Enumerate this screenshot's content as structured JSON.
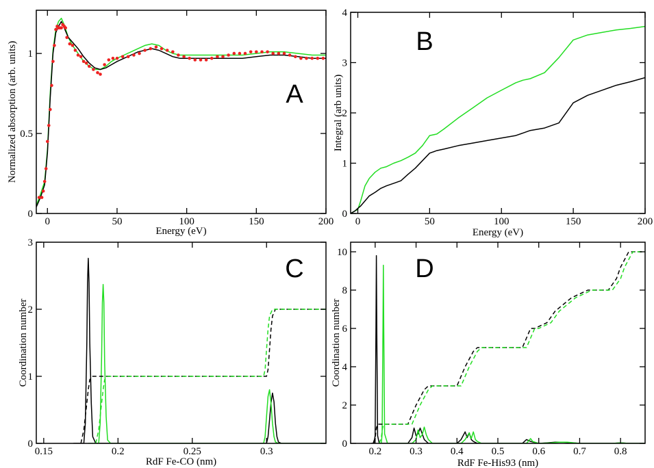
{
  "colors": {
    "black": "#000000",
    "green": "#22dd22",
    "red": "#ee2222"
  },
  "chart_data": [
    {
      "type": "line",
      "panel_label": "A",
      "xlabel": "Energy (eV)",
      "ylabel": "Normalized absorption (arb. units)",
      "xlim": [
        -8,
        200
      ],
      "ylim": [
        0,
        1.27
      ],
      "xticks": [
        0,
        50,
        100,
        150,
        200
      ],
      "yticks": [
        0,
        0.5,
        1
      ],
      "xtick_labels": [
        "0",
        "50",
        "100",
        "150",
        "200"
      ],
      "ytick_labels": [
        "0",
        "0.5",
        "1"
      ],
      "series": [
        {
          "color": "green",
          "style": "solid",
          "x": [
            -8,
            -5,
            -2,
            0,
            2,
            4,
            6,
            8,
            10,
            12,
            15,
            18,
            22,
            26,
            30,
            34,
            38,
            42,
            46,
            50,
            55,
            60,
            65,
            70,
            75,
            80,
            85,
            90,
            95,
            100,
            110,
            120,
            130,
            140,
            150,
            160,
            170,
            180,
            190,
            200
          ],
          "y": [
            0.05,
            0.12,
            0.2,
            0.4,
            0.75,
            1.02,
            1.15,
            1.2,
            1.22,
            1.18,
            1.1,
            1.05,
            1.0,
            0.95,
            0.92,
            0.9,
            0.9,
            0.92,
            0.95,
            0.97,
            0.99,
            1.01,
            1.03,
            1.05,
            1.06,
            1.05,
            1.02,
            1.0,
            0.99,
            0.99,
            0.99,
            0.99,
            0.99,
            0.99,
            1.0,
            1.01,
            1.01,
            1.0,
            0.99,
            0.99
          ]
        },
        {
          "color": "black",
          "style": "solid",
          "x": [
            -8,
            -5,
            -2,
            0,
            2,
            4,
            6,
            8,
            10,
            12,
            15,
            18,
            22,
            26,
            30,
            34,
            38,
            42,
            46,
            50,
            55,
            60,
            65,
            70,
            75,
            80,
            85,
            90,
            95,
            100,
            110,
            120,
            130,
            140,
            150,
            160,
            170,
            180,
            190,
            200
          ],
          "y": [
            0.04,
            0.1,
            0.18,
            0.38,
            0.72,
            1.0,
            1.13,
            1.17,
            1.2,
            1.16,
            1.1,
            1.07,
            1.03,
            0.98,
            0.94,
            0.91,
            0.9,
            0.91,
            0.93,
            0.95,
            0.97,
            0.99,
            1.01,
            1.02,
            1.03,
            1.02,
            1.0,
            0.98,
            0.97,
            0.97,
            0.97,
            0.97,
            0.97,
            0.97,
            0.98,
            0.99,
            0.99,
            0.98,
            0.97,
            0.97
          ]
        },
        {
          "color": "red",
          "style": "dots",
          "x": [
            -6,
            -4,
            -3,
            -2,
            -1,
            0,
            1,
            2,
            3,
            4,
            5,
            6,
            7,
            8,
            9,
            10,
            11,
            12,
            13,
            14,
            16,
            18,
            20,
            22,
            24,
            26,
            28,
            30,
            33,
            36,
            38,
            41,
            44,
            47,
            50,
            54,
            58,
            62,
            66,
            70,
            74,
            78,
            82,
            86,
            90,
            94,
            98,
            102,
            106,
            110,
            114,
            118,
            122,
            126,
            130,
            134,
            138,
            142,
            146,
            150,
            154,
            158,
            162,
            166,
            170,
            174,
            178,
            182,
            186,
            190,
            194,
            198
          ],
          "y": [
            0.1,
            0.1,
            0.14,
            0.2,
            0.28,
            0.45,
            0.55,
            0.65,
            0.8,
            0.95,
            1.05,
            1.15,
            1.17,
            1.16,
            1.16,
            1.16,
            1.18,
            1.17,
            1.16,
            1.1,
            1.06,
            1.05,
            1.02,
            0.99,
            0.98,
            0.95,
            0.94,
            0.92,
            0.9,
            0.88,
            0.87,
            0.93,
            0.96,
            0.97,
            0.97,
            0.98,
            0.98,
            0.99,
            1.0,
            1.02,
            1.03,
            1.04,
            1.03,
            1.02,
            1.01,
            0.99,
            0.98,
            0.97,
            0.96,
            0.96,
            0.96,
            0.97,
            0.98,
            0.98,
            0.99,
            1.0,
            1.0,
            1.0,
            1.01,
            1.01,
            1.01,
            1.01,
            1.0,
            1.0,
            1.0,
            0.99,
            0.98,
            0.97,
            0.97,
            0.97,
            0.97,
            0.97
          ]
        }
      ]
    },
    {
      "type": "line",
      "panel_label": "B",
      "xlabel": "Energy (eV)",
      "ylabel": "Integral (arb units)",
      "xlim": [
        -5,
        200
      ],
      "ylim": [
        0,
        4
      ],
      "xticks": [
        0,
        50,
        100,
        150,
        200
      ],
      "yticks": [
        0,
        1,
        2,
        3,
        4
      ],
      "xtick_labels": [
        "0",
        "50",
        "100",
        "150",
        "200"
      ],
      "ytick_labels": [
        "0",
        "1",
        "2",
        "3",
        "4"
      ],
      "series": [
        {
          "color": "green",
          "style": "solid",
          "x": [
            -5,
            -2,
            0,
            2,
            5,
            8,
            12,
            16,
            20,
            25,
            30,
            35,
            40,
            45,
            50,
            55,
            60,
            70,
            80,
            90,
            100,
            110,
            115,
            120,
            130,
            140,
            150,
            160,
            170,
            180,
            190,
            200
          ],
          "y": [
            0.0,
            0.05,
            0.08,
            0.25,
            0.55,
            0.7,
            0.82,
            0.9,
            0.93,
            1.0,
            1.05,
            1.12,
            1.2,
            1.35,
            1.55,
            1.58,
            1.68,
            1.9,
            2.1,
            2.3,
            2.45,
            2.6,
            2.65,
            2.68,
            2.8,
            3.1,
            3.45,
            3.55,
            3.6,
            3.65,
            3.68,
            3.72
          ]
        },
        {
          "color": "black",
          "style": "solid",
          "x": [
            -5,
            -2,
            0,
            2,
            5,
            8,
            12,
            16,
            20,
            25,
            30,
            35,
            40,
            45,
            50,
            55,
            60,
            70,
            80,
            90,
            100,
            110,
            115,
            120,
            130,
            140,
            150,
            160,
            170,
            180,
            190,
            200
          ],
          "y": [
            0.0,
            0.05,
            0.1,
            0.15,
            0.25,
            0.35,
            0.42,
            0.5,
            0.55,
            0.6,
            0.65,
            0.78,
            0.9,
            1.05,
            1.2,
            1.25,
            1.28,
            1.35,
            1.4,
            1.45,
            1.5,
            1.55,
            1.6,
            1.65,
            1.7,
            1.8,
            2.2,
            2.35,
            2.45,
            2.55,
            2.62,
            2.7
          ]
        }
      ]
    },
    {
      "type": "line",
      "panel_label": "C",
      "xlabel": "RdF Fe-CO (nm)",
      "ylabel": "Coordination number",
      "xlim": [
        0.145,
        0.34
      ],
      "ylim": [
        0,
        3
      ],
      "xticks": [
        0.15,
        0.2,
        0.25,
        0.3
      ],
      "yticks": [
        0,
        1,
        2,
        3
      ],
      "xtick_labels": [
        "0.15",
        "0.2",
        "0.25",
        "0.3"
      ],
      "ytick_labels": [
        "0",
        "1",
        "2",
        "3"
      ],
      "series": [
        {
          "color": "black",
          "style": "solid",
          "x": [
            0.17,
            0.177,
            0.178,
            0.179,
            0.1795,
            0.18,
            0.1805,
            0.181,
            0.182,
            0.183,
            0.185,
            0.3,
            0.301,
            0.302,
            0.303,
            0.304,
            0.305,
            0.306,
            0.307,
            0.308,
            0.31,
            0.34
          ],
          "y": [
            0,
            0,
            0.3,
            1.5,
            2.4,
            2.76,
            2.4,
            1.5,
            0.6,
            0.1,
            0,
            0,
            0.1,
            0.35,
            0.6,
            0.75,
            0.62,
            0.3,
            0.1,
            0.02,
            0,
            0
          ]
        },
        {
          "color": "green",
          "style": "solid",
          "x": [
            0.18,
            0.187,
            0.188,
            0.189,
            0.1895,
            0.19,
            0.1905,
            0.191,
            0.192,
            0.193,
            0.195,
            0.298,
            0.299,
            0.3,
            0.301,
            0.302,
            0.303,
            0.304,
            0.305,
            0.306,
            0.308,
            0.34
          ],
          "y": [
            0,
            0,
            0.3,
            1.3,
            2.1,
            2.37,
            2.1,
            1.2,
            0.4,
            0.05,
            0,
            0,
            0.1,
            0.4,
            0.7,
            0.8,
            0.6,
            0.3,
            0.1,
            0.02,
            0,
            0
          ]
        },
        {
          "color": "black",
          "style": "dashed",
          "x": [
            0.175,
            0.177,
            0.179,
            0.18,
            0.181,
            0.183,
            0.3,
            0.301,
            0.302,
            0.303,
            0.304,
            0.306,
            0.34
          ],
          "y": [
            0,
            0.2,
            0.6,
            0.8,
            0.95,
            1,
            1,
            1.1,
            1.4,
            1.7,
            1.9,
            2,
            2
          ]
        },
        {
          "color": "green",
          "style": "dashed",
          "x": [
            0.185,
            0.187,
            0.189,
            0.19,
            0.191,
            0.193,
            0.298,
            0.299,
            0.3,
            0.301,
            0.302,
            0.304,
            0.34
          ],
          "y": [
            0,
            0.2,
            0.6,
            0.8,
            0.95,
            1,
            1,
            1.1,
            1.4,
            1.7,
            1.9,
            2,
            2
          ]
        }
      ]
    },
    {
      "type": "line",
      "panel_label": "D",
      "xlabel": "RdF Fe-His93 (nm)",
      "ylabel": "Coordination number",
      "xlim": [
        0.14,
        0.86
      ],
      "ylim": [
        0,
        10.5
      ],
      "xticks": [
        0.2,
        0.3,
        0.4,
        0.5,
        0.6,
        0.7,
        0.8
      ],
      "yticks": [
        0,
        2,
        4,
        6,
        8,
        10
      ],
      "xtick_labels": [
        "0.2",
        "0.3",
        "0.4",
        "0.5",
        "0.6",
        "0.7",
        "0.8"
      ],
      "ytick_labels": [
        "0",
        "2",
        "4",
        "6",
        "8",
        "10"
      ],
      "series": [
        {
          "color": "black",
          "style": "solid",
          "x": [
            0.19,
            0.197,
            0.2,
            0.202,
            0.203,
            0.204,
            0.206,
            0.21,
            0.28,
            0.29,
            0.295,
            0.3,
            0.305,
            0.31,
            0.315,
            0.32,
            0.33,
            0.4,
            0.41,
            0.42,
            0.425,
            0.43,
            0.435,
            0.44,
            0.45,
            0.56,
            0.57,
            0.58,
            0.6,
            0.62,
            0.64,
            0.66,
            0.7,
            0.78,
            0.8,
            0.82,
            0.86
          ],
          "y": [
            0,
            0,
            0.4,
            6,
            9.8,
            6,
            0.4,
            0,
            0,
            0.3,
            0.8,
            0.4,
            0.5,
            0.8,
            0.5,
            0.2,
            0,
            0,
            0.2,
            0.6,
            0.3,
            0.55,
            0.2,
            0.1,
            0,
            0,
            0.2,
            0.1,
            0,
            0.03,
            0.06,
            0.06,
            0,
            0,
            0.03,
            0,
            0
          ]
        },
        {
          "color": "green",
          "style": "solid",
          "x": [
            0.21,
            0.215,
            0.217,
            0.219,
            0.22,
            0.221,
            0.223,
            0.23,
            0.29,
            0.3,
            0.305,
            0.31,
            0.315,
            0.32,
            0.325,
            0.33,
            0.34,
            0.41,
            0.42,
            0.43,
            0.435,
            0.44,
            0.445,
            0.45,
            0.46,
            0.57,
            0.58,
            0.585,
            0.6,
            0.63,
            0.65,
            0.67,
            0.7,
            0.78,
            0.8,
            0.82,
            0.86
          ],
          "y": [
            0,
            0,
            0.5,
            6,
            9.3,
            6,
            0.5,
            0,
            0,
            0.2,
            0.7,
            0.3,
            0.45,
            0.85,
            0.45,
            0.2,
            0,
            0,
            0.2,
            0.55,
            0.25,
            0.6,
            0.2,
            0.1,
            0,
            0,
            0.25,
            0.1,
            0,
            0.03,
            0.06,
            0.06,
            0,
            0,
            0.03,
            0,
            0
          ]
        },
        {
          "color": "black",
          "style": "dashed",
          "x": [
            0.195,
            0.2,
            0.203,
            0.206,
            0.21,
            0.28,
            0.3,
            0.32,
            0.33,
            0.4,
            0.42,
            0.44,
            0.45,
            0.56,
            0.57,
            0.58,
            0.59,
            0.62,
            0.64,
            0.68,
            0.72,
            0.77,
            0.79,
            0.8,
            0.82,
            0.86
          ],
          "y": [
            0,
            0.3,
            0.8,
            1,
            1,
            1,
            2,
            2.8,
            3,
            3,
            4,
            4.8,
            5,
            5,
            5.5,
            6,
            6,
            6.3,
            6.9,
            7.6,
            8,
            8,
            8.6,
            9.2,
            10,
            10
          ]
        },
        {
          "color": "green",
          "style": "dashed",
          "x": [
            0.21,
            0.215,
            0.218,
            0.221,
            0.225,
            0.29,
            0.31,
            0.33,
            0.34,
            0.41,
            0.43,
            0.45,
            0.46,
            0.57,
            0.58,
            0.59,
            0.6,
            0.63,
            0.65,
            0.69,
            0.73,
            0.78,
            0.8,
            0.81,
            0.83,
            0.86
          ],
          "y": [
            0,
            0.3,
            0.8,
            1,
            1,
            1,
            2,
            2.8,
            3,
            3,
            4,
            4.8,
            5,
            5,
            5.5,
            6,
            6,
            6.3,
            6.9,
            7.6,
            8,
            8,
            8.6,
            9.2,
            10,
            10
          ]
        }
      ]
    }
  ]
}
